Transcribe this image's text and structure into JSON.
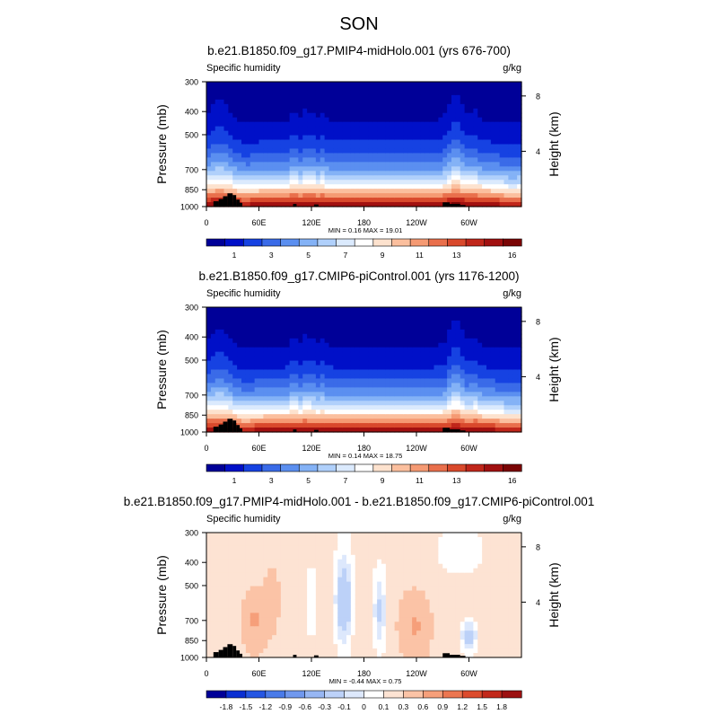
{
  "page": {
    "season_title": "SON"
  },
  "colors": {
    "abs_palette": [
      "#000098",
      "#0010c8",
      "#1642e2",
      "#3a6be8",
      "#5b8ff0",
      "#84b2f6",
      "#b0d0fb",
      "#dbeafd",
      "#ffffff",
      "#fde2ce",
      "#fbbf9e",
      "#f59a73",
      "#e96f4c",
      "#d9492c",
      "#c0261a",
      "#a11010",
      "#7a0505"
    ],
    "diff_palette": [
      "#000098",
      "#0a2fd2",
      "#2556e3",
      "#4a7be9",
      "#7098ee",
      "#97b6f3",
      "#bcd1f8",
      "#dde8fc",
      "#ffffff",
      "#fde3d3",
      "#fbc3a6",
      "#f69f7a",
      "#ec7650",
      "#dc4b2d",
      "#c2281a",
      "#9c1010"
    ],
    "topography": "#000000"
  },
  "chart_data": [
    {
      "type": "heatmap",
      "title": "b.e21.B1850.f09_g17.PMIP4-midHolo.001 (yrs 676-700)",
      "variable_label": "Specific humidity",
      "units_label": "g/kg",
      "ylabel": "Pressure (mb)",
      "ylabel_right": "Height (km)",
      "x_ticks": [
        "0",
        "60E",
        "120E",
        "180",
        "120W",
        "60W"
      ],
      "x_tick_lon": [
        0,
        60,
        120,
        180,
        240,
        300
      ],
      "y_ticks": [
        "300",
        "400",
        "500",
        "700",
        "850",
        "1000"
      ],
      "y_tick_p": [
        300,
        400,
        500,
        700,
        850,
        1000
      ],
      "y_ticks_right": [
        "8",
        "4"
      ],
      "y_tick_km": [
        8,
        4
      ],
      "ylim": [
        300,
        1000
      ],
      "xlim": [
        0,
        360
      ],
      "min_max_text": "MIN =   0.16   MAX =   19.01",
      "min": 0.16,
      "max": 19.01,
      "colorbar_levels": [
        0,
        1,
        2,
        3,
        4,
        5,
        6,
        7,
        8,
        9,
        10,
        11,
        12,
        13,
        14,
        15,
        16
      ],
      "colorbar_labels": [
        "1",
        "3",
        "5",
        "7",
        "9",
        "11",
        "13",
        "16"
      ],
      "field": "abs"
    },
    {
      "type": "heatmap",
      "title": "b.e21.B1850.f09_g17.CMIP6-piControl.001 (yrs 1176-1200)",
      "variable_label": "Specific humidity",
      "units_label": "g/kg",
      "ylabel": "Pressure (mb)",
      "ylabel_right": "Height (km)",
      "x_ticks": [
        "0",
        "60E",
        "120E",
        "180",
        "120W",
        "60W"
      ],
      "x_tick_lon": [
        0,
        60,
        120,
        180,
        240,
        300
      ],
      "y_ticks": [
        "300",
        "400",
        "500",
        "700",
        "850",
        "1000"
      ],
      "y_tick_p": [
        300,
        400,
        500,
        700,
        850,
        1000
      ],
      "y_ticks_right": [
        "8",
        "4"
      ],
      "y_tick_km": [
        8,
        4
      ],
      "ylim": [
        300,
        1000
      ],
      "xlim": [
        0,
        360
      ],
      "min_max_text": "MIN =   0.14   MAX =   18.75",
      "min": 0.14,
      "max": 18.75,
      "colorbar_levels": [
        0,
        1,
        2,
        3,
        4,
        5,
        6,
        7,
        8,
        9,
        10,
        11,
        12,
        13,
        14,
        15,
        16
      ],
      "colorbar_labels": [
        "1",
        "3",
        "5",
        "7",
        "9",
        "11",
        "13",
        "16"
      ],
      "field": "abs"
    },
    {
      "type": "heatmap",
      "title": "b.e21.B1850.f09_g17.PMIP4-midHolo.001 - b.e21.B1850.f09_g17.CMIP6-piControl.001",
      "variable_label": "Specific humidity",
      "units_label": "g/kg",
      "ylabel": "Pressure (mb)",
      "ylabel_right": "Height (km)",
      "x_ticks": [
        "0",
        "60E",
        "120E",
        "180",
        "120W",
        "60W"
      ],
      "x_tick_lon": [
        0,
        60,
        120,
        180,
        240,
        300
      ],
      "y_ticks": [
        "300",
        "400",
        "500",
        "700",
        "850",
        "1000"
      ],
      "y_tick_p": [
        300,
        400,
        500,
        700,
        850,
        1000
      ],
      "y_ticks_right": [
        "8",
        "4"
      ],
      "y_tick_km": [
        8,
        4
      ],
      "ylim": [
        300,
        1000
      ],
      "xlim": [
        0,
        360
      ],
      "min_max_text": "MIN =  -0.44   MAX =   0.75",
      "min": -0.44,
      "max": 0.75,
      "colorbar_levels": [
        -1.8,
        -1.5,
        -1.2,
        -0.9,
        -0.6,
        -0.3,
        -0.1,
        0,
        0.1,
        0.3,
        0.6,
        0.9,
        1.2,
        1.5,
        1.8
      ],
      "colorbar_labels": [
        "-1.8",
        "-1.5",
        "-1.2",
        "-0.9",
        "-0.6",
        "-0.3",
        "-0.1",
        "0",
        "0.1",
        "0.3",
        "0.6",
        "0.9",
        "1.2",
        "1.5",
        "1.8"
      ],
      "field": "diff"
    }
  ]
}
